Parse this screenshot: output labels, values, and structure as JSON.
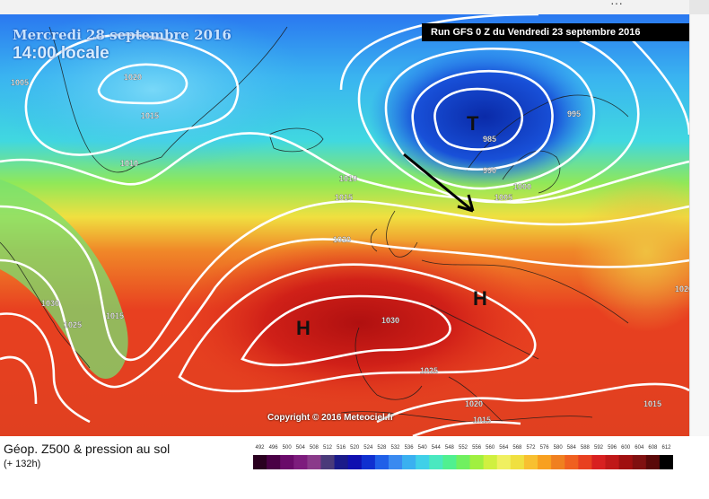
{
  "window": {
    "top_strip_icons": [
      "ellipsis-icon"
    ]
  },
  "map": {
    "valid_date": "Mercredi 28 septembre 2016",
    "valid_time": "14:00 locale",
    "run_label": "Run GFS 0 Z du Vendredi 23 septembre 2016",
    "copyright": "Copyright © 2016 Meteociel.fr",
    "low_symbol": "T",
    "high_symbol": "H",
    "isobar_labels": [
      "1005",
      "1020",
      "1015",
      "1010",
      "1010",
      "1015",
      "1020",
      "1030",
      "1025",
      "1015",
      "1030",
      "1025",
      "1020",
      "1015",
      "1015",
      "985",
      "990",
      "995",
      "1000",
      "1005",
      "1020"
    ],
    "colors": {
      "contour_line": "#ffffff",
      "arrow": "#000000",
      "run_label_bg": "#000000"
    }
  },
  "legend": {
    "title": "Géop. Z500 & pression au sol",
    "forecast_hour": "(+ 132h)",
    "scale_values": [
      "492",
      "496",
      "500",
      "504",
      "508",
      "512",
      "516",
      "520",
      "524",
      "528",
      "532",
      "536",
      "540",
      "544",
      "548",
      "552",
      "556",
      "560",
      "564",
      "568",
      "572",
      "576",
      "580",
      "584",
      "588",
      "592",
      "596",
      "600",
      "604",
      "608",
      "612"
    ],
    "scale_colors": [
      "#2a0020",
      "#4a0045",
      "#6a0a6a",
      "#7d1c7d",
      "#8a3a8a",
      "#4a3a7a",
      "#1a1a8a",
      "#1010b0",
      "#1030d0",
      "#2060e8",
      "#3a8af0",
      "#3ab0f0",
      "#40d0e8",
      "#4ae8c0",
      "#50f090",
      "#70f060",
      "#a0f040",
      "#d0f040",
      "#f0f060",
      "#f0e040",
      "#f8c030",
      "#f8a020",
      "#f08020",
      "#f06020",
      "#e84020",
      "#d82020",
      "#c01818",
      "#a01010",
      "#801010",
      "#5a0808",
      "#000000"
    ]
  }
}
